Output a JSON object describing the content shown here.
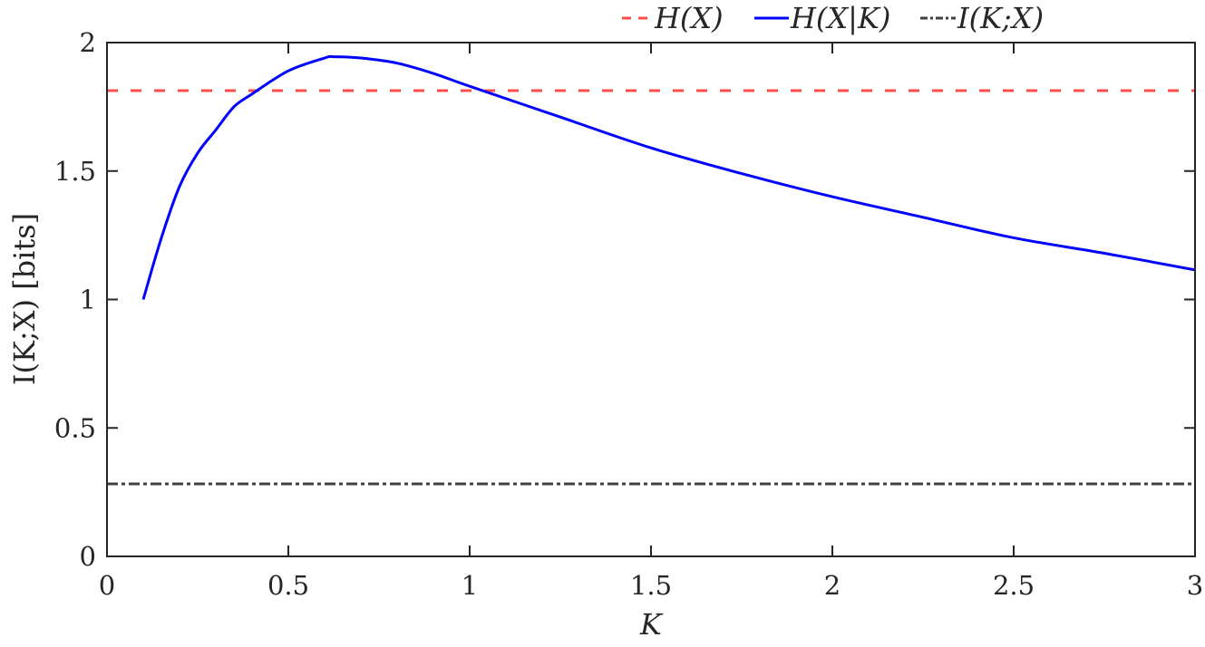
{
  "chart_data": {
    "type": "line",
    "title": "",
    "xlabel": "K",
    "ylabel": "I(K;X) [bits]",
    "xlim": [
      0,
      3
    ],
    "ylim": [
      0,
      2
    ],
    "xticks": [
      0,
      0.5,
      1,
      1.5,
      2,
      2.5,
      3
    ],
    "xtick_labels": [
      "0",
      "0.5",
      "1",
      "1.5",
      "2",
      "2.5",
      "3"
    ],
    "yticks": [
      0,
      0.5,
      1,
      1.5,
      2
    ],
    "ytick_labels": [
      "0",
      "0.5",
      "1",
      "1.5",
      "2"
    ],
    "grid": false,
    "legend_position": "top-right, outside above axes, horizontal",
    "series": [
      {
        "name": "H(X)",
        "style": "dashed",
        "color": "#ff4d4d",
        "x": [
          0,
          3
        ],
        "values": [
          1.813,
          1.813
        ]
      },
      {
        "name": "H(X|K)",
        "style": "solid",
        "color": "#0000ff",
        "x": [
          0.1,
          0.15,
          0.2,
          0.25,
          0.3,
          0.35,
          0.4,
          0.5,
          0.6,
          0.625,
          0.7,
          0.8,
          0.9,
          1.0,
          1.25,
          1.5,
          1.75,
          2.0,
          2.25,
          2.5,
          2.75,
          3.0
        ],
        "values": [
          1.0,
          1.24,
          1.44,
          1.57,
          1.66,
          1.75,
          1.8,
          1.89,
          1.94,
          1.945,
          1.94,
          1.92,
          1.88,
          1.83,
          1.71,
          1.59,
          1.49,
          1.4,
          1.32,
          1.24,
          1.18,
          1.115
        ]
      },
      {
        "name": "I(K;X)",
        "style": "dash-dot",
        "color": "#404040",
        "x": [
          0,
          3
        ],
        "values": [
          0.282,
          0.282
        ]
      }
    ]
  },
  "legend": {
    "items": [
      {
        "label": "H(X)"
      },
      {
        "label": "H(X|K)"
      },
      {
        "label": "I(K;X)"
      }
    ]
  },
  "axes": {
    "xlabel": "K",
    "ylabel": "I(K;X) [bits]"
  }
}
